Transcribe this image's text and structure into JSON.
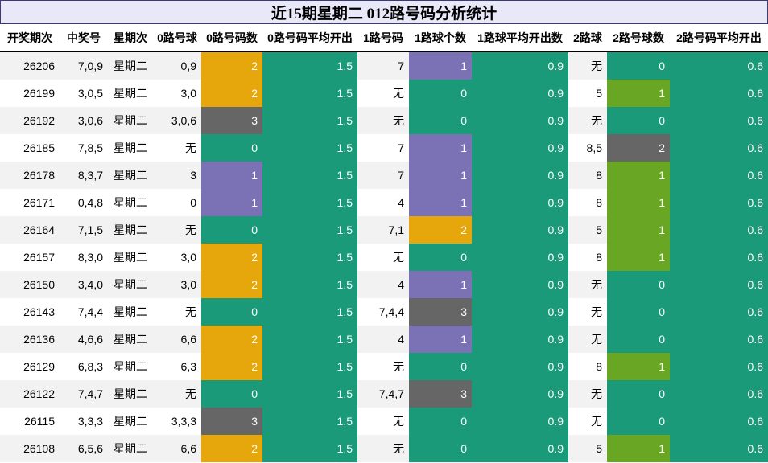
{
  "title": "近15期星期二 012路号码分析统计",
  "headers": [
    "开奖期次",
    "中奖号",
    "星期次",
    "0路号球",
    "0路号码数",
    "0路号码平均开出",
    "1路号码",
    "1路球个数",
    "1路球平均开出数",
    "2路球",
    "2路号球数",
    "2路号码平均开出"
  ],
  "rows": [
    {
      "period": "26206",
      "win": "7,0,9",
      "weekday": "星期二",
      "r0_balls": "0,9",
      "r0_count": "2",
      "r0_avg": "1.5",
      "r1_balls": "7",
      "r1_count": "1",
      "r1_avg": "0.9",
      "r2_balls": "无",
      "r2_count": "0",
      "r2_avg": "0.6"
    },
    {
      "period": "26199",
      "win": "3,0,5",
      "weekday": "星期二",
      "r0_balls": "3,0",
      "r0_count": "2",
      "r0_avg": "1.5",
      "r1_balls": "无",
      "r1_count": "0",
      "r1_avg": "0.9",
      "r2_balls": "5",
      "r2_count": "1",
      "r2_avg": "0.6"
    },
    {
      "period": "26192",
      "win": "3,0,6",
      "weekday": "星期二",
      "r0_balls": "3,0,6",
      "r0_count": "3",
      "r0_avg": "1.5",
      "r1_balls": "无",
      "r1_count": "0",
      "r1_avg": "0.9",
      "r2_balls": "无",
      "r2_count": "0",
      "r2_avg": "0.6"
    },
    {
      "period": "26185",
      "win": "7,8,5",
      "weekday": "星期二",
      "r0_balls": "无",
      "r0_count": "0",
      "r0_avg": "1.5",
      "r1_balls": "7",
      "r1_count": "1",
      "r1_avg": "0.9",
      "r2_balls": "8,5",
      "r2_count": "2",
      "r2_avg": "0.6"
    },
    {
      "period": "26178",
      "win": "8,3,7",
      "weekday": "星期二",
      "r0_balls": "3",
      "r0_count": "1",
      "r0_avg": "1.5",
      "r1_balls": "7",
      "r1_count": "1",
      "r1_avg": "0.9",
      "r2_balls": "8",
      "r2_count": "1",
      "r2_avg": "0.6"
    },
    {
      "period": "26171",
      "win": "0,4,8",
      "weekday": "星期二",
      "r0_balls": "0",
      "r0_count": "1",
      "r0_avg": "1.5",
      "r1_balls": "4",
      "r1_count": "1",
      "r1_avg": "0.9",
      "r2_balls": "8",
      "r2_count": "1",
      "r2_avg": "0.6"
    },
    {
      "period": "26164",
      "win": "7,1,5",
      "weekday": "星期二",
      "r0_balls": "无",
      "r0_count": "0",
      "r0_avg": "1.5",
      "r1_balls": "7,1",
      "r1_count": "2",
      "r1_avg": "0.9",
      "r2_balls": "5",
      "r2_count": "1",
      "r2_avg": "0.6"
    },
    {
      "period": "26157",
      "win": "8,3,0",
      "weekday": "星期二",
      "r0_balls": "3,0",
      "r0_count": "2",
      "r0_avg": "1.5",
      "r1_balls": "无",
      "r1_count": "0",
      "r1_avg": "0.9",
      "r2_balls": "8",
      "r2_count": "1",
      "r2_avg": "0.6"
    },
    {
      "period": "26150",
      "win": "3,4,0",
      "weekday": "星期二",
      "r0_balls": "3,0",
      "r0_count": "2",
      "r0_avg": "1.5",
      "r1_balls": "4",
      "r1_count": "1",
      "r1_avg": "0.9",
      "r2_balls": "无",
      "r2_count": "0",
      "r2_avg": "0.6"
    },
    {
      "period": "26143",
      "win": "7,4,4",
      "weekday": "星期二",
      "r0_balls": "无",
      "r0_count": "0",
      "r0_avg": "1.5",
      "r1_balls": "7,4,4",
      "r1_count": "3",
      "r1_avg": "0.9",
      "r2_balls": "无",
      "r2_count": "0",
      "r2_avg": "0.6"
    },
    {
      "period": "26136",
      "win": "4,6,6",
      "weekday": "星期二",
      "r0_balls": "6,6",
      "r0_count": "2",
      "r0_avg": "1.5",
      "r1_balls": "4",
      "r1_count": "1",
      "r1_avg": "0.9",
      "r2_balls": "无",
      "r2_count": "0",
      "r2_avg": "0.6"
    },
    {
      "period": "26129",
      "win": "6,8,3",
      "weekday": "星期二",
      "r0_balls": "6,3",
      "r0_count": "2",
      "r0_avg": "1.5",
      "r1_balls": "无",
      "r1_count": "0",
      "r1_avg": "0.9",
      "r2_balls": "8",
      "r2_count": "1",
      "r2_avg": "0.6"
    },
    {
      "period": "26122",
      "win": "7,4,7",
      "weekday": "星期二",
      "r0_balls": "无",
      "r0_count": "0",
      "r0_avg": "1.5",
      "r1_balls": "7,4,7",
      "r1_count": "3",
      "r1_avg": "0.9",
      "r2_balls": "无",
      "r2_count": "0",
      "r2_avg": "0.6"
    },
    {
      "period": "26115",
      "win": "3,3,3",
      "weekday": "星期二",
      "r0_balls": "3,3,3",
      "r0_count": "3",
      "r0_avg": "1.5",
      "r1_balls": "无",
      "r1_count": "0",
      "r1_avg": "0.9",
      "r2_balls": "无",
      "r2_count": "0",
      "r2_avg": "0.6"
    },
    {
      "period": "26108",
      "win": "6,5,6",
      "weekday": "星期二",
      "r0_balls": "6,6",
      "r0_count": "2",
      "r0_avg": "1.5",
      "r1_balls": "无",
      "r1_count": "0",
      "r1_avg": "0.9",
      "r2_balls": "5",
      "r2_count": "1",
      "r2_avg": "0.6"
    }
  ],
  "colors": {
    "count_0": "#1a9a78",
    "count_1_route1": "#7b72b6",
    "count_1_route2": "#68a624",
    "count_2": "#e5a70b",
    "count_2_route2": "#666666",
    "count_3": "#666666",
    "avg": "#1a9a78"
  }
}
